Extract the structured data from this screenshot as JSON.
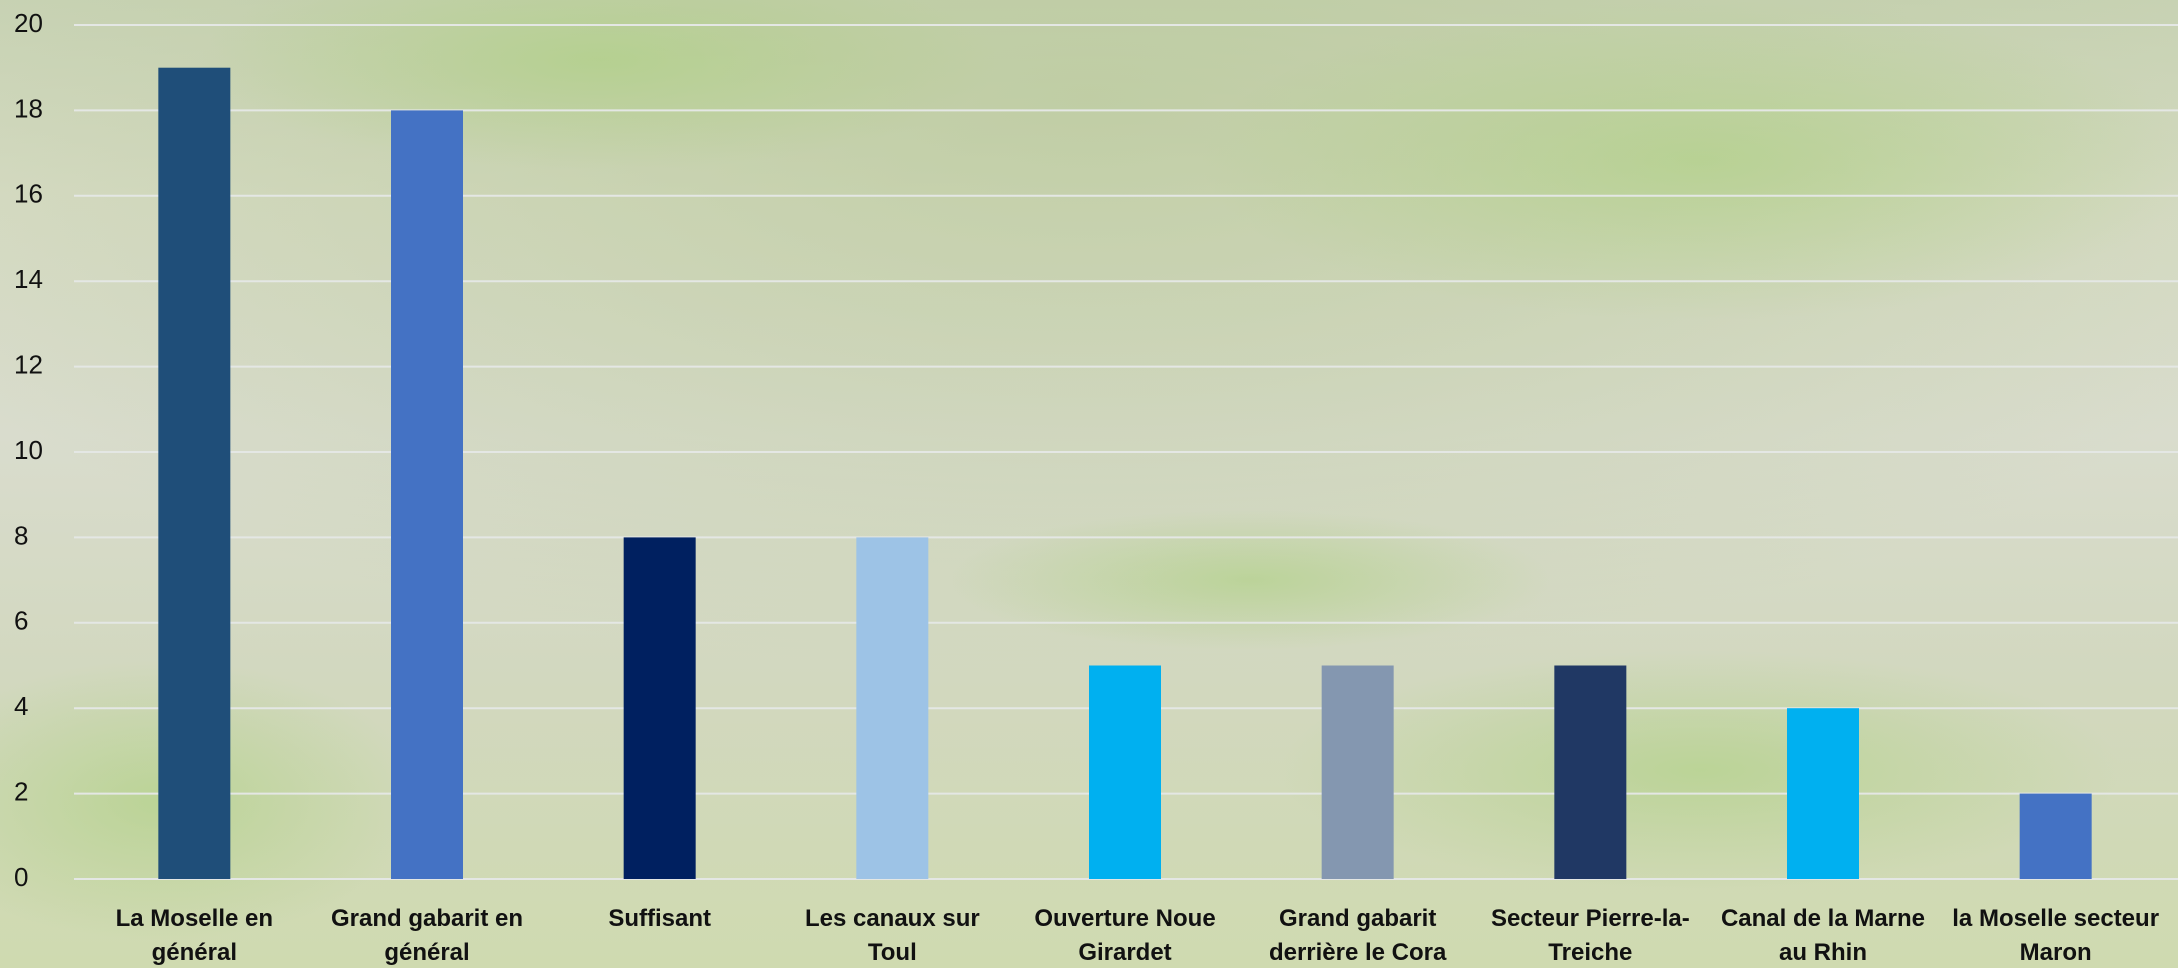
{
  "chart_data": {
    "type": "bar",
    "categories": [
      "La Moselle en général",
      "Grand gabarit en général",
      "Suffisant",
      "Les canaux sur Toul",
      "Ouverture Noue Girardet",
      "Grand gabarit derrière le Cora",
      "Secteur Pierre-la-Treiche",
      "Canal de la Marne au Rhin",
      "la Moselle  secteur Maron"
    ],
    "values": [
      19,
      18,
      8,
      8,
      5,
      5,
      5,
      4,
      2
    ],
    "colors": [
      "#1f4e79",
      "#4472c4",
      "#002060",
      "#9dc3e6",
      "#00b0f0",
      "#8497b0",
      "#203864",
      "#00b0f0",
      "#4472c4"
    ],
    "ylim": [
      0,
      20
    ],
    "yticks": [
      0,
      2,
      4,
      6,
      8,
      10,
      12,
      14,
      16,
      18,
      20
    ],
    "grid": true
  }
}
